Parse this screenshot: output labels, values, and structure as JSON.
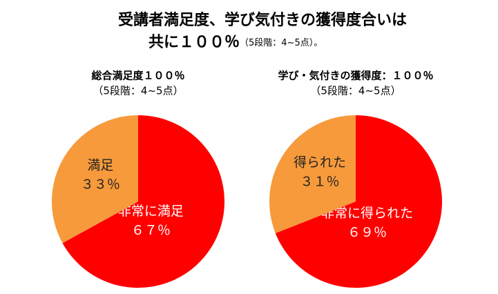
{
  "title": {
    "line1": "受講者満足度、学び気付きの獲得度合いは",
    "line2_main": "共に１００％",
    "line2_note": "（5段階：4~5点）。"
  },
  "chart_data": [
    {
      "type": "pie",
      "title": "総合満足度１００％",
      "subtitle": "（5段階：4~5点）",
      "categories": [
        "非常に満足",
        "満足"
      ],
      "values": [
        67,
        33
      ],
      "value_labels": [
        "６７％",
        "３３％"
      ],
      "colors": [
        "#ff0000",
        "#f79a3b"
      ]
    },
    {
      "type": "pie",
      "title": "学び・気付きの獲得度：１００％",
      "subtitle": "（5段階：4~5点）",
      "categories": [
        "非常に得られた",
        "得られた"
      ],
      "values": [
        69,
        31
      ],
      "value_labels": [
        "６９％",
        "３１％"
      ],
      "colors": [
        "#ff0000",
        "#f79a3b"
      ]
    }
  ]
}
